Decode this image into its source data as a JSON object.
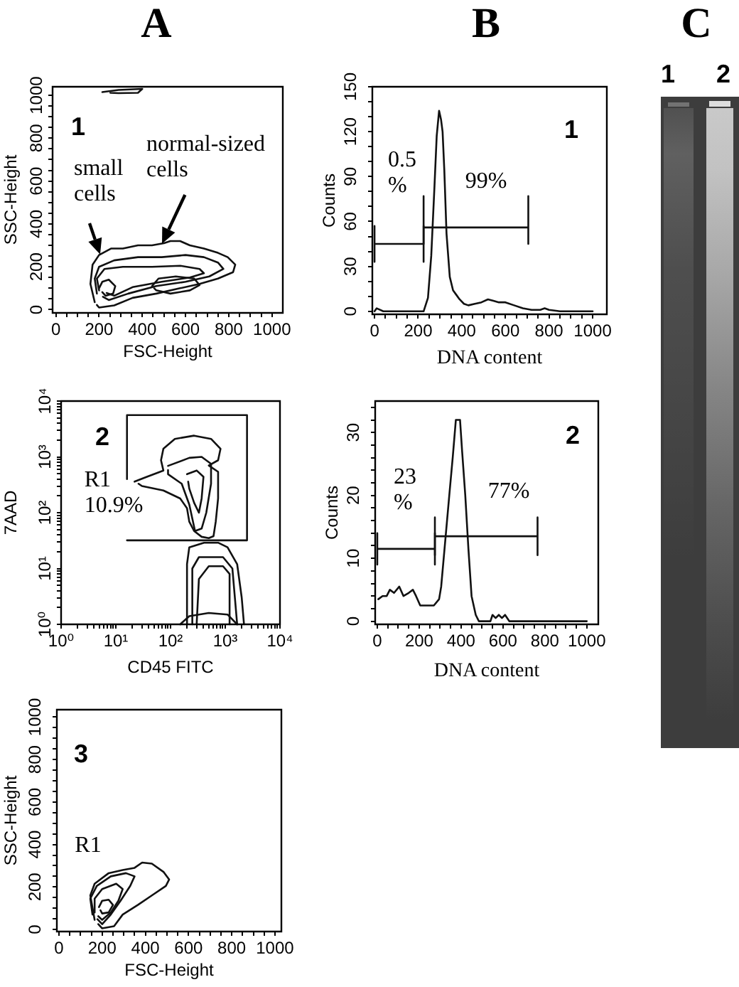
{
  "chart_data": [
    {
      "type": "line",
      "title": "A",
      "xlabel": "FSC-Height",
      "ylabel": "SSC-Height",
      "xlim": [
        -15,
        1050
      ],
      "ylim": [
        -15,
        1040
      ],
      "xticks": [
        0,
        {
          "value": 50,
          "label": null
        },
        {
          "value": 100,
          "label": null
        },
        {
          "value": 150,
          "label": null
        },
        200,
        {
          "value": 250,
          "label": null
        },
        {
          "value": 300,
          "label": null
        },
        {
          "value": 350,
          "label": null
        },
        400,
        {
          "value": 450,
          "label": null
        },
        {
          "value": 500,
          "label": null
        },
        {
          "value": 550,
          "label": null
        },
        600,
        {
          "value": 650,
          "label": null
        },
        {
          "value": 700,
          "label": null
        },
        {
          "value": 750,
          "label": null
        },
        800,
        {
          "value": 850,
          "label": null
        },
        {
          "value": 900,
          "label": null
        },
        {
          "value": 950,
          "label": null
        },
        1000
      ],
      "yticks": [
        0,
        {
          "value": 50,
          "label": null
        },
        {
          "value": 100,
          "label": null
        },
        {
          "value": 150,
          "label": null
        },
        200,
        {
          "value": 250,
          "label": null
        },
        {
          "value": 300,
          "label": null
        },
        {
          "value": 350,
          "label": null
        },
        400,
        {
          "value": 450,
          "label": null
        },
        {
          "value": 500,
          "label": null
        },
        {
          "value": 550,
          "label": null
        },
        600,
        {
          "value": 650,
          "label": null
        },
        {
          "value": 700,
          "label": null
        },
        {
          "value": 750,
          "label": null
        },
        800,
        {
          "value": 850,
          "label": null
        },
        {
          "value": 900,
          "label": null
        },
        {
          "value": 950,
          "label": null
        },
        1000
      ],
      "series": [
        {
          "color": "#111111",
          "x": [
            180,
            160,
            170,
            200,
            255,
            310,
            380,
            445,
            500,
            530,
            575,
            620,
            685,
            750,
            795,
            830,
            820,
            750,
            665,
            575,
            465,
            355,
            270,
            200,
            190
          ],
          "values": [
            35,
            120,
            210,
            255,
            285,
            285,
            300,
            300,
            310,
            320,
            320,
            300,
            285,
            265,
            245,
            210,
            175,
            145,
            120,
            100,
            75,
            55,
            20,
            10,
            22
          ]
        },
        {
          "color": "#111111",
          "x": [
            190,
            180,
            200,
            270,
            380,
            490,
            600,
            685,
            750,
            775,
            710,
            600,
            465,
            335,
            245,
            218
          ],
          "values": [
            75,
            145,
            200,
            230,
            245,
            245,
            255,
            245,
            220,
            190,
            155,
            130,
            110,
            75,
            45,
            60
          ]
        },
        {
          "color": "#111111",
          "x": [
            200,
            190,
            225,
            310,
            445,
            575,
            665,
            685,
            620,
            490,
            355,
            270,
            235
          ],
          "values": [
            90,
            145,
            190,
            200,
            200,
            205,
            190,
            170,
            150,
            130,
            105,
            65,
            78
          ]
        },
        {
          "color": "#111111",
          "x": [
            445,
            475,
            555,
            640,
            665,
            620,
            530,
            465,
            455
          ],
          "values": [
            110,
            145,
            155,
            145,
            115,
            90,
            75,
            90,
            100
          ]
        },
        {
          "color": "#111111",
          "x": [
            200,
            215,
            245,
            275,
            265,
            230,
            215
          ],
          "values": [
            100,
            130,
            140,
            110,
            75,
            65,
            82
          ]
        },
        {
          "color": "#111111",
          "x": [
            215,
            290,
            400,
            380,
            290,
            252
          ],
          "values": [
            1015,
            1025,
            1030,
            1012,
            1010,
            1012
          ]
        }
      ],
      "annotations": [
        "1",
        {
          "text": "small cells",
          "x": 205,
          "y": 258
        },
        {
          "text": "normal-sized cells",
          "x": 490,
          "y": 308
        }
      ]
    },
    {
      "type": "line",
      "xlabel": "CD45 FITC",
      "ylabel": "7AAD",
      "log": "xy",
      "xlim": [
        1,
        10000
      ],
      "ylim": [
        1,
        10000
      ],
      "xticks": [
        {
          "value": 1,
          "label": "10⁰"
        },
        {
          "value": 2,
          "label": null
        },
        {
          "value": 3,
          "label": null
        },
        {
          "value": 4,
          "label": null
        },
        {
          "value": 5,
          "label": null
        },
        {
          "value": 6,
          "label": null
        },
        {
          "value": 7,
          "label": null
        },
        {
          "value": 8,
          "label": null
        },
        {
          "value": 9,
          "label": null
        },
        {
          "value": 10,
          "label": "10¹"
        },
        {
          "value": 20,
          "label": null
        },
        {
          "value": 30,
          "label": null
        },
        {
          "value": 40,
          "label": null
        },
        {
          "value": 50,
          "label": null
        },
        {
          "value": 60,
          "label": null
        },
        {
          "value": 70,
          "label": null
        },
        {
          "value": 80,
          "label": null
        },
        {
          "value": 90,
          "label": null
        },
        {
          "value": 100,
          "label": "10²"
        },
        {
          "value": 200,
          "label": null
        },
        {
          "value": 300,
          "label": null
        },
        {
          "value": 400,
          "label": null
        },
        {
          "value": 500,
          "label": null
        },
        {
          "value": 600,
          "label": null
        },
        {
          "value": 700,
          "label": null
        },
        {
          "value": 800,
          "label": null
        },
        {
          "value": 900,
          "label": null
        },
        {
          "value": 1000,
          "label": "10³"
        },
        {
          "value": 2000,
          "label": null
        },
        {
          "value": 3000,
          "label": null
        },
        {
          "value": 4000,
          "label": null
        },
        {
          "value": 5000,
          "label": null
        },
        {
          "value": 6000,
          "label": null
        },
        {
          "value": 7000,
          "label": null
        },
        {
          "value": 8000,
          "label": null
        },
        {
          "value": 9000,
          "label": null
        },
        {
          "value": 10000,
          "label": "10⁴"
        }
      ],
      "yticks": [
        {
          "value": 1,
          "label": "10⁰"
        },
        {
          "value": 2,
          "label": null
        },
        {
          "value": 3,
          "label": null
        },
        {
          "value": 4,
          "label": null
        },
        {
          "value": 5,
          "label": null
        },
        {
          "value": 6,
          "label": null
        },
        {
          "value": 7,
          "label": null
        },
        {
          "value": 8,
          "label": null
        },
        {
          "value": 9,
          "label": null
        },
        {
          "value": 10,
          "label": "10¹"
        },
        {
          "value": 20,
          "label": null
        },
        {
          "value": 30,
          "label": null
        },
        {
          "value": 40,
          "label": null
        },
        {
          "value": 50,
          "label": null
        },
        {
          "value": 60,
          "label": null
        },
        {
          "value": 70,
          "label": null
        },
        {
          "value": 80,
          "label": null
        },
        {
          "value": 90,
          "label": null
        },
        {
          "value": 100,
          "label": "10²"
        },
        {
          "value": 200,
          "label": null
        },
        {
          "value": 300,
          "label": null
        },
        {
          "value": 400,
          "label": null
        },
        {
          "value": 500,
          "label": null
        },
        {
          "value": 600,
          "label": null
        },
        {
          "value": 700,
          "label": null
        },
        {
          "value": 800,
          "label": null
        },
        {
          "value": 900,
          "label": null
        },
        {
          "value": 1000,
          "label": "10³"
        },
        {
          "value": 2000,
          "label": null
        },
        {
          "value": 3000,
          "label": null
        },
        {
          "value": 4000,
          "label": null
        },
        {
          "value": 5000,
          "label": null
        },
        {
          "value": 6000,
          "label": null
        },
        {
          "value": 7000,
          "label": null
        },
        {
          "value": 8000,
          "label": null
        },
        {
          "value": 9000,
          "label": null
        },
        {
          "value": 10000,
          "label": "10⁴"
        }
      ],
      "series": [
        {
          "color": "#111111",
          "x": [
            22,
            37,
            74,
            67,
            74,
            120,
            270,
            550,
            820,
            740,
            500,
            740,
            740,
            670,
            610,
            500,
            370,
            270,
            220,
            200,
            150,
            74,
            30,
            26
          ],
          "values": [
            360,
            440,
            570,
            870,
            1400,
            2100,
            2400,
            2100,
            1400,
            870,
            700,
            540,
            180,
            69,
            38,
            35,
            37,
            47,
            69,
            120,
            180,
            250,
            300,
            330
          ]
        },
        {
          "color": "#111111",
          "x": [
            90,
            220,
            370,
            550,
            550,
            450,
            370,
            280,
            220,
            160,
            90,
            90
          ],
          "values": [
            690,
            960,
            1000,
            750,
            330,
            100,
            52,
            47,
            140,
            330,
            490,
            580
          ]
        },
        {
          "color": "#111111",
          "x": [
            200,
            300,
            400,
            370,
            330,
            270,
            220,
            210
          ],
          "values": [
            490,
            570,
            440,
            180,
            100,
            150,
            270,
            360
          ]
        },
        {
          "color": "#111111",
          "x": [
            200,
            200,
            220,
            410,
            740,
            1100,
            1650,
            2000,
            2200
          ],
          "values": [
            1,
            12,
            24,
            29,
            29,
            24,
            12,
            3,
            1
          ]
        },
        {
          "color": "#111111",
          "x": [
            250,
            250,
            330,
            910,
            1350,
            1500,
            1650
          ],
          "values": [
            1,
            10,
            16,
            16,
            10,
            3,
            1
          ]
        },
        {
          "color": "#111111",
          "x": [
            300,
            330,
            500,
            910,
            1200,
            1200
          ],
          "values": [
            1,
            6.5,
            11,
            11,
            8,
            1
          ]
        },
        {
          "color": "#111111",
          "x": [
            150,
            220,
            500,
            1100,
            1650
          ],
          "values": [
            1,
            1.4,
            1.6,
            1.5,
            1
          ]
        },
        {
          "color": "#111111",
          "x": [
            16,
            16,
            2500,
            2500,
            16
          ],
          "values": [
            400,
            5600,
            5600,
            32,
            32
          ]
        }
      ],
      "annotations": [
        "2",
        "R1 10.9%"
      ]
    },
    {
      "type": "line",
      "xlabel": "FSC-Height",
      "ylabel": "SSC-Height",
      "xlim": [
        -10,
        1030
      ],
      "ylim": [
        -10,
        1035
      ],
      "xticks": [
        0,
        {
          "value": 50,
          "label": null
        },
        {
          "value": 100,
          "label": null
        },
        {
          "value": 150,
          "label": null
        },
        200,
        {
          "value": 250,
          "label": null
        },
        {
          "value": 300,
          "label": null
        },
        {
          "value": 350,
          "label": null
        },
        400,
        {
          "value": 450,
          "label": null
        },
        {
          "value": 500,
          "label": null
        },
        {
          "value": 550,
          "label": null
        },
        600,
        {
          "value": 650,
          "label": null
        },
        {
          "value": 700,
          "label": null
        },
        {
          "value": 750,
          "label": null
        },
        800,
        {
          "value": 850,
          "label": null
        },
        {
          "value": 900,
          "label": null
        },
        {
          "value": 950,
          "label": null
        },
        1000
      ],
      "yticks": [
        0,
        {
          "value": 50,
          "label": null
        },
        {
          "value": 100,
          "label": null
        },
        {
          "value": 150,
          "label": null
        },
        200,
        {
          "value": 250,
          "label": null
        },
        {
          "value": 300,
          "label": null
        },
        {
          "value": 350,
          "label": null
        },
        400,
        {
          "value": 450,
          "label": null
        },
        {
          "value": 500,
          "label": null
        },
        {
          "value": 550,
          "label": null
        },
        600,
        {
          "value": 650,
          "label": null
        },
        {
          "value": 700,
          "label": null
        },
        {
          "value": 750,
          "label": null
        },
        800,
        {
          "value": 850,
          "label": null
        },
        {
          "value": 900,
          "label": null
        },
        {
          "value": 950,
          "label": null
        },
        1000
      ],
      "series": [
        {
          "color": "#111111",
          "x": [
            165,
            145,
            165,
            230,
            295,
            350,
            385,
            430,
            485,
            510,
            495,
            430,
            365,
            295,
            255,
            200,
            182
          ],
          "values": [
            45,
            160,
            215,
            265,
            280,
            290,
            315,
            310,
            270,
            235,
            205,
            160,
            115,
            70,
            15,
            5,
            25
          ]
        },
        {
          "color": "#111111",
          "x": [
            155,
            145,
            175,
            240,
            310,
            350,
            330,
            285,
            240,
            200,
            178
          ],
          "values": [
            70,
            145,
            205,
            250,
            265,
            250,
            205,
            135,
            70,
            25,
            48
          ]
        },
        {
          "color": "#111111",
          "x": [
            165,
            165,
            200,
            265,
            295,
            275,
            240,
            200,
            182
          ],
          "values": [
            80,
            145,
            190,
            215,
            190,
            135,
            80,
            45,
            62
          ]
        },
        {
          "color": "#111111",
          "x": [
            185,
            200,
            230,
            250,
            230,
            200,
            192
          ],
          "values": [
            105,
            135,
            140,
            115,
            80,
            75,
            90
          ]
        }
      ],
      "annotations": [
        "3",
        "R1"
      ]
    },
    {
      "type": "line",
      "title": "B",
      "xlabel": "DNA content",
      "ylabel": "Counts",
      "xlim": [
        -10,
        1065
      ],
      "ylim": [
        -2,
        150
      ],
      "xticks": [
        0,
        {
          "value": 50,
          "label": null
        },
        {
          "value": 100,
          "label": null
        },
        {
          "value": 150,
          "label": null
        },
        200,
        {
          "value": 250,
          "label": null
        },
        {
          "value": 300,
          "label": null
        },
        {
          "value": 350,
          "label": null
        },
        400,
        {
          "value": 450,
          "label": null
        },
        {
          "value": 500,
          "label": null
        },
        {
          "value": 550,
          "label": null
        },
        600,
        {
          "value": 650,
          "label": null
        },
        {
          "value": 700,
          "label": null
        },
        {
          "value": 750,
          "label": null
        },
        800,
        {
          "value": 850,
          "label": null
        },
        {
          "value": 900,
          "label": null
        },
        {
          "value": 950,
          "label": null
        },
        1000
      ],
      "yticks": [
        0,
        {
          "value": 10,
          "label": null
        },
        {
          "value": 20,
          "label": null
        },
        30,
        {
          "value": 40,
          "label": null
        },
        {
          "value": 50,
          "label": null
        },
        60,
        {
          "value": 70,
          "label": null
        },
        {
          "value": 80,
          "label": null
        },
        90,
        {
          "value": 100,
          "label": null
        },
        {
          "value": 110,
          "label": null
        },
        120,
        {
          "value": 130,
          "label": null
        },
        {
          "value": 140,
          "label": null
        },
        150
      ],
      "series": [
        {
          "color": "#111111",
          "x": [
            0,
            10,
            25,
            40,
            225,
            245,
            260,
            275,
            285,
            296,
            305,
            312,
            320,
            330,
            345,
            360,
            375,
            390,
            410,
            430,
            460,
            490,
            520,
            545,
            570,
            600,
            640,
            680,
            720,
            760,
            780,
            800,
            850,
            1000
          ],
          "values": [
            0,
            2,
            1,
            0,
            0,
            9,
            37,
            84,
            117,
            134,
            128,
            120,
            94,
            52,
            23,
            14,
            11,
            8,
            5,
            4,
            5,
            6,
            8,
            7,
            6,
            6,
            4,
            2,
            1,
            1,
            2,
            1,
            0,
            0
          ]
        },
        {
          "color": "#111111",
          "x": [
            0,
            0,
            0,
            225,
            225,
            225
          ],
          "values": [
            57,
            33,
            45,
            45,
            33,
            57
          ]
        },
        {
          "color": "#111111",
          "x": [
            225,
            225,
            225,
            705,
            705,
            705
          ],
          "values": [
            77,
            45,
            56,
            56,
            45,
            77
          ]
        }
      ],
      "annotations": [
        "1",
        "0.5 %",
        "99%"
      ]
    },
    {
      "type": "line",
      "xlabel": "DNA content",
      "ylabel": "Counts",
      "xlim": [
        -10,
        1055
      ],
      "ylim": [
        -0.5,
        35
      ],
      "xticks": [
        0,
        {
          "value": 50,
          "label": null
        },
        {
          "value": 100,
          "label": null
        },
        {
          "value": 150,
          "label": null
        },
        200,
        {
          "value": 250,
          "label": null
        },
        {
          "value": 300,
          "label": null
        },
        {
          "value": 350,
          "label": null
        },
        400,
        {
          "value": 450,
          "label": null
        },
        {
          "value": 500,
          "label": null
        },
        {
          "value": 550,
          "label": null
        },
        600,
        {
          "value": 650,
          "label": null
        },
        {
          "value": 700,
          "label": null
        },
        {
          "value": 750,
          "label": null
        },
        800,
        {
          "value": 850,
          "label": null
        },
        {
          "value": 900,
          "label": null
        },
        {
          "value": 950,
          "label": null
        },
        1000
      ],
      "yticks": [
        0,
        {
          "value": 2,
          "label": null
        },
        {
          "value": 4,
          "label": null
        },
        {
          "value": 6,
          "label": null
        },
        {
          "value": 8,
          "label": null
        },
        10,
        {
          "value": 12,
          "label": null
        },
        {
          "value": 14,
          "label": null
        },
        {
          "value": 16,
          "label": null
        },
        {
          "value": 18,
          "label": null
        },
        20,
        {
          "value": 22,
          "label": null
        },
        {
          "value": 24,
          "label": null
        },
        {
          "value": 26,
          "label": null
        },
        {
          "value": 28,
          "label": null
        },
        30,
        {
          "value": 32,
          "label": null
        },
        {
          "value": 34,
          "label": null
        }
      ],
      "series": [
        {
          "color": "#111111",
          "x": [
            5,
            25,
            45,
            60,
            80,
            105,
            125,
            150,
            170,
            185,
            205,
            240,
            270,
            295,
            305,
            325,
            345,
            360,
            375,
            395,
            405,
            420,
            435,
            450,
            470,
            485,
            540,
            550,
            565,
            580,
            595,
            610,
            630,
            1000
          ],
          "values": [
            3.5,
            4,
            4,
            5,
            4.5,
            5.5,
            4,
            4.5,
            5,
            4,
            2.5,
            2.5,
            2.5,
            3.5,
            5.5,
            13,
            20.5,
            26,
            32,
            32,
            27,
            20,
            11.5,
            4,
            1,
            0,
            0,
            1,
            0.5,
            1,
            0.5,
            1,
            0,
            0
          ]
        },
        {
          "color": "#111111",
          "x": [
            0,
            0,
            0,
            275,
            275,
            275
          ],
          "values": [
            14,
            9,
            11.5,
            11.5,
            9,
            14
          ]
        },
        {
          "color": "#111111",
          "x": [
            275,
            275,
            275,
            765,
            765,
            765
          ],
          "values": [
            16.5,
            10.5,
            13.5,
            13.5,
            10.5,
            16.5
          ]
        }
      ],
      "annotations": [
        "2",
        "23 %",
        "77%"
      ]
    },
    {
      "type": "other",
      "title": "C",
      "annotations": [
        "1",
        "2"
      ]
    }
  ]
}
